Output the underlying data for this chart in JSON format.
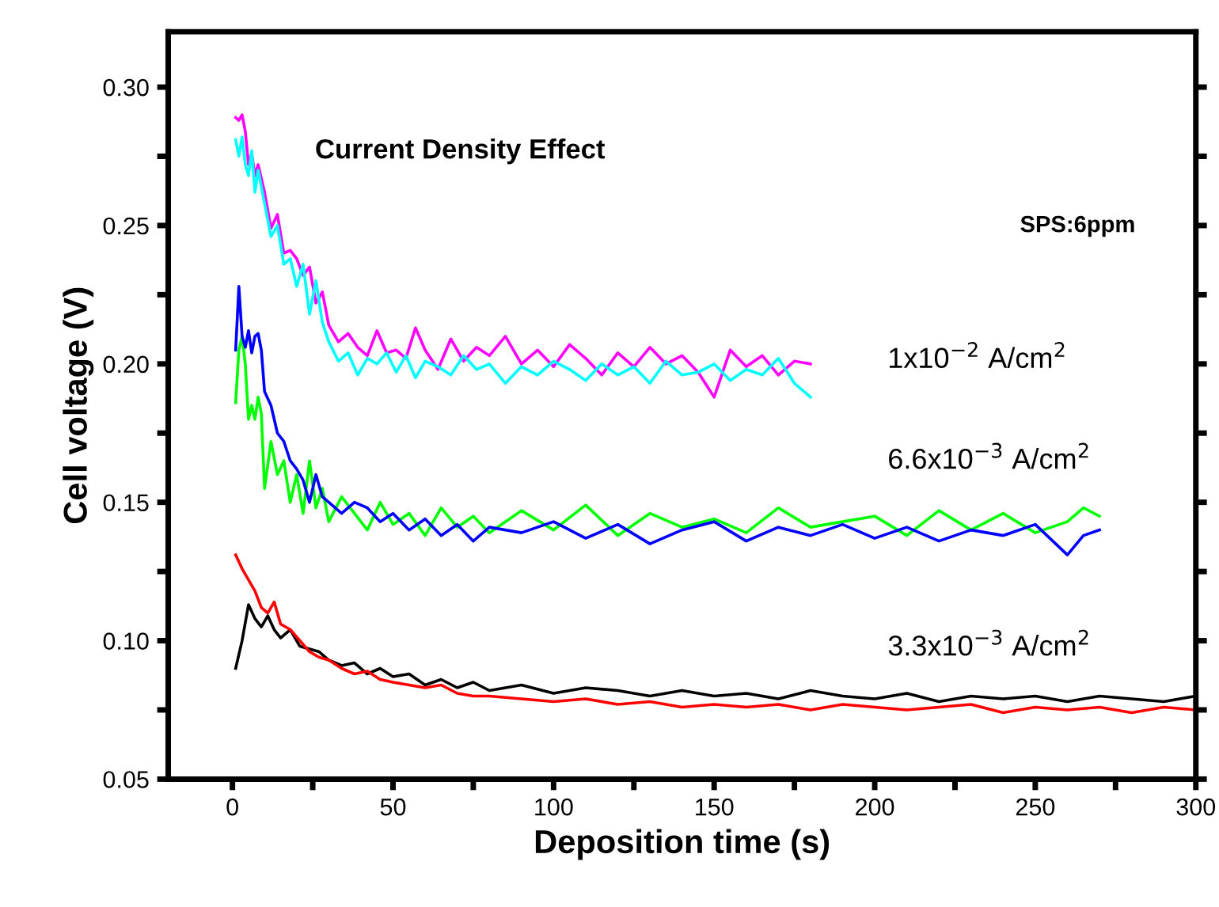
{
  "chart_data": {
    "type": "line",
    "title": "Current Density Effect",
    "xlabel": "Deposition time (s)",
    "ylabel": "Cell voltage (V)",
    "xlim": [
      -20,
      300
    ],
    "xticks": [
      0,
      {
        "value": 25,
        "label": null
      },
      50,
      {
        "value": 75,
        "label": null
      },
      100,
      {
        "value": 125,
        "label": null
      },
      150,
      {
        "value": 175,
        "label": null
      },
      200,
      {
        "value": 225,
        "label": null
      },
      250,
      {
        "value": 275,
        "label": null
      },
      300
    ],
    "ylim": [
      0.05,
      0.32
    ],
    "yticks": [
      {
        "value": 0.05,
        "label": "0.05"
      },
      {
        "value": 0.075,
        "label": null
      },
      {
        "value": 0.1,
        "label": "0.10"
      },
      {
        "value": 0.125,
        "label": null
      },
      {
        "value": 0.15,
        "label": "0.15"
      },
      {
        "value": 0.175,
        "label": null
      },
      {
        "value": 0.2,
        "label": "0.20"
      },
      {
        "value": 0.225,
        "label": null
      },
      {
        "value": 0.25,
        "label": "0.25"
      },
      {
        "value": 0.275,
        "label": null
      },
      {
        "value": 0.3,
        "label": "0.30"
      }
    ],
    "grid": false,
    "marker": "none",
    "line_style": "solid",
    "annotations": [
      "SPS:6ppm",
      "1x10$^{−2}$ A/cm$^{2}$",
      "6.6x10$^{−3}$ A/cm$^{2}$",
      "3.3x10$^{−3}$ A/cm$^{2}$"
    ],
    "series": [
      {
        "color": "#ff00ff",
        "x": [
          1,
          2,
          3,
          4,
          5,
          6,
          7,
          8,
          10,
          12,
          14,
          16,
          18,
          20,
          22,
          24,
          26,
          28,
          30,
          33,
          36,
          39,
          42,
          45,
          48,
          51,
          54,
          57,
          60,
          64,
          68,
          72,
          76,
          80,
          85,
          90,
          95,
          100,
          105,
          110,
          115,
          120,
          125,
          130,
          135,
          140,
          145,
          150,
          155,
          160,
          165,
          170,
          175,
          180
        ],
        "values": [
          0.289,
          0.288,
          0.29,
          0.284,
          0.272,
          0.276,
          0.268,
          0.272,
          0.262,
          0.249,
          0.254,
          0.24,
          0.241,
          0.238,
          0.232,
          0.235,
          0.222,
          0.226,
          0.214,
          0.208,
          0.211,
          0.206,
          0.203,
          0.212,
          0.204,
          0.205,
          0.202,
          0.213,
          0.205,
          0.198,
          0.209,
          0.201,
          0.206,
          0.203,
          0.21,
          0.2,
          0.205,
          0.199,
          0.207,
          0.202,
          0.196,
          0.204,
          0.199,
          0.206,
          0.2,
          0.203,
          0.197,
          0.188,
          0.205,
          0.199,
          0.203,
          0.196,
          0.201,
          0.2
        ]
      },
      {
        "color": "#00ffff",
        "x": [
          1,
          2,
          3,
          4,
          5,
          6,
          7,
          8,
          10,
          12,
          14,
          16,
          18,
          20,
          22,
          24,
          26,
          28,
          30,
          33,
          36,
          39,
          42,
          45,
          48,
          51,
          54,
          57,
          60,
          64,
          68,
          72,
          76,
          80,
          85,
          90,
          95,
          100,
          105,
          110,
          115,
          120,
          125,
          130,
          135,
          140,
          145,
          150,
          155,
          160,
          165,
          170,
          175,
          180
        ],
        "values": [
          0.281,
          0.275,
          0.282,
          0.272,
          0.268,
          0.277,
          0.262,
          0.27,
          0.258,
          0.246,
          0.25,
          0.236,
          0.238,
          0.228,
          0.236,
          0.218,
          0.23,
          0.215,
          0.208,
          0.201,
          0.204,
          0.196,
          0.202,
          0.2,
          0.204,
          0.197,
          0.203,
          0.195,
          0.201,
          0.199,
          0.196,
          0.203,
          0.198,
          0.2,
          0.193,
          0.199,
          0.196,
          0.201,
          0.198,
          0.194,
          0.2,
          0.196,
          0.199,
          0.193,
          0.201,
          0.196,
          0.197,
          0.2,
          0.194,
          0.198,
          0.196,
          0.202,
          0.193,
          0.188
        ]
      },
      {
        "color": "#00ff00",
        "x": [
          1,
          2,
          3,
          4,
          5,
          6,
          7,
          8,
          9,
          10,
          12,
          14,
          16,
          18,
          20,
          22,
          24,
          26,
          28,
          30,
          34,
          38,
          42,
          46,
          50,
          55,
          60,
          65,
          70,
          75,
          80,
          90,
          100,
          110,
          120,
          130,
          140,
          150,
          160,
          170,
          180,
          190,
          200,
          210,
          220,
          230,
          240,
          250,
          260,
          265,
          270
        ],
        "values": [
          0.186,
          0.205,
          0.21,
          0.2,
          0.18,
          0.185,
          0.18,
          0.188,
          0.182,
          0.155,
          0.172,
          0.16,
          0.165,
          0.15,
          0.16,
          0.146,
          0.165,
          0.148,
          0.155,
          0.143,
          0.152,
          0.146,
          0.14,
          0.15,
          0.142,
          0.146,
          0.138,
          0.148,
          0.141,
          0.145,
          0.139,
          0.147,
          0.14,
          0.149,
          0.138,
          0.146,
          0.141,
          0.144,
          0.139,
          0.148,
          0.141,
          0.143,
          0.145,
          0.138,
          0.147,
          0.14,
          0.146,
          0.139,
          0.143,
          0.148,
          0.145
        ]
      },
      {
        "color": "#0000ff",
        "x": [
          1,
          2,
          3,
          4,
          5,
          6,
          7,
          8,
          9,
          10,
          12,
          14,
          16,
          18,
          20,
          22,
          24,
          26,
          28,
          30,
          34,
          38,
          42,
          46,
          50,
          55,
          60,
          65,
          70,
          75,
          80,
          90,
          100,
          110,
          120,
          130,
          140,
          150,
          160,
          170,
          180,
          190,
          200,
          210,
          220,
          230,
          240,
          250,
          260,
          265,
          270
        ],
        "values": [
          0.205,
          0.228,
          0.21,
          0.206,
          0.212,
          0.204,
          0.21,
          0.211,
          0.205,
          0.19,
          0.185,
          0.175,
          0.172,
          0.165,
          0.162,
          0.158,
          0.15,
          0.16,
          0.152,
          0.15,
          0.146,
          0.15,
          0.148,
          0.143,
          0.146,
          0.14,
          0.144,
          0.138,
          0.142,
          0.136,
          0.141,
          0.139,
          0.143,
          0.137,
          0.142,
          0.135,
          0.14,
          0.143,
          0.136,
          0.141,
          0.138,
          0.142,
          0.137,
          0.141,
          0.136,
          0.14,
          0.138,
          0.142,
          0.131,
          0.138,
          0.14
        ]
      },
      {
        "color": "#000000",
        "x": [
          1,
          3,
          5,
          7,
          9,
          11,
          13,
          15,
          18,
          21,
          24,
          27,
          30,
          34,
          38,
          42,
          46,
          50,
          55,
          60,
          65,
          70,
          75,
          80,
          90,
          100,
          110,
          120,
          130,
          140,
          150,
          160,
          170,
          180,
          190,
          200,
          210,
          220,
          230,
          240,
          250,
          260,
          270,
          280,
          290,
          300
        ],
        "values": [
          0.09,
          0.1,
          0.113,
          0.108,
          0.105,
          0.109,
          0.104,
          0.101,
          0.104,
          0.098,
          0.097,
          0.096,
          0.093,
          0.091,
          0.092,
          0.088,
          0.09,
          0.087,
          0.088,
          0.084,
          0.086,
          0.083,
          0.085,
          0.082,
          0.084,
          0.081,
          0.083,
          0.082,
          0.08,
          0.082,
          0.08,
          0.081,
          0.079,
          0.082,
          0.08,
          0.079,
          0.081,
          0.078,
          0.08,
          0.079,
          0.08,
          0.078,
          0.08,
          0.079,
          0.078,
          0.08
        ]
      },
      {
        "color": "#ff0000",
        "x": [
          1,
          3,
          5,
          7,
          9,
          11,
          13,
          15,
          18,
          21,
          24,
          27,
          30,
          34,
          38,
          42,
          46,
          50,
          55,
          60,
          65,
          70,
          75,
          80,
          90,
          100,
          110,
          120,
          130,
          140,
          150,
          160,
          170,
          180,
          190,
          200,
          210,
          220,
          230,
          240,
          250,
          260,
          270,
          280,
          290,
          300
        ],
        "values": [
          0.131,
          0.126,
          0.122,
          0.118,
          0.112,
          0.11,
          0.114,
          0.106,
          0.104,
          0.1,
          0.096,
          0.094,
          0.093,
          0.09,
          0.088,
          0.089,
          0.086,
          0.085,
          0.084,
          0.083,
          0.084,
          0.081,
          0.08,
          0.08,
          0.079,
          0.078,
          0.079,
          0.077,
          0.078,
          0.076,
          0.077,
          0.076,
          0.077,
          0.075,
          0.077,
          0.076,
          0.075,
          0.076,
          0.077,
          0.074,
          0.076,
          0.075,
          0.076,
          0.074,
          0.076,
          0.075
        ]
      }
    ]
  }
}
